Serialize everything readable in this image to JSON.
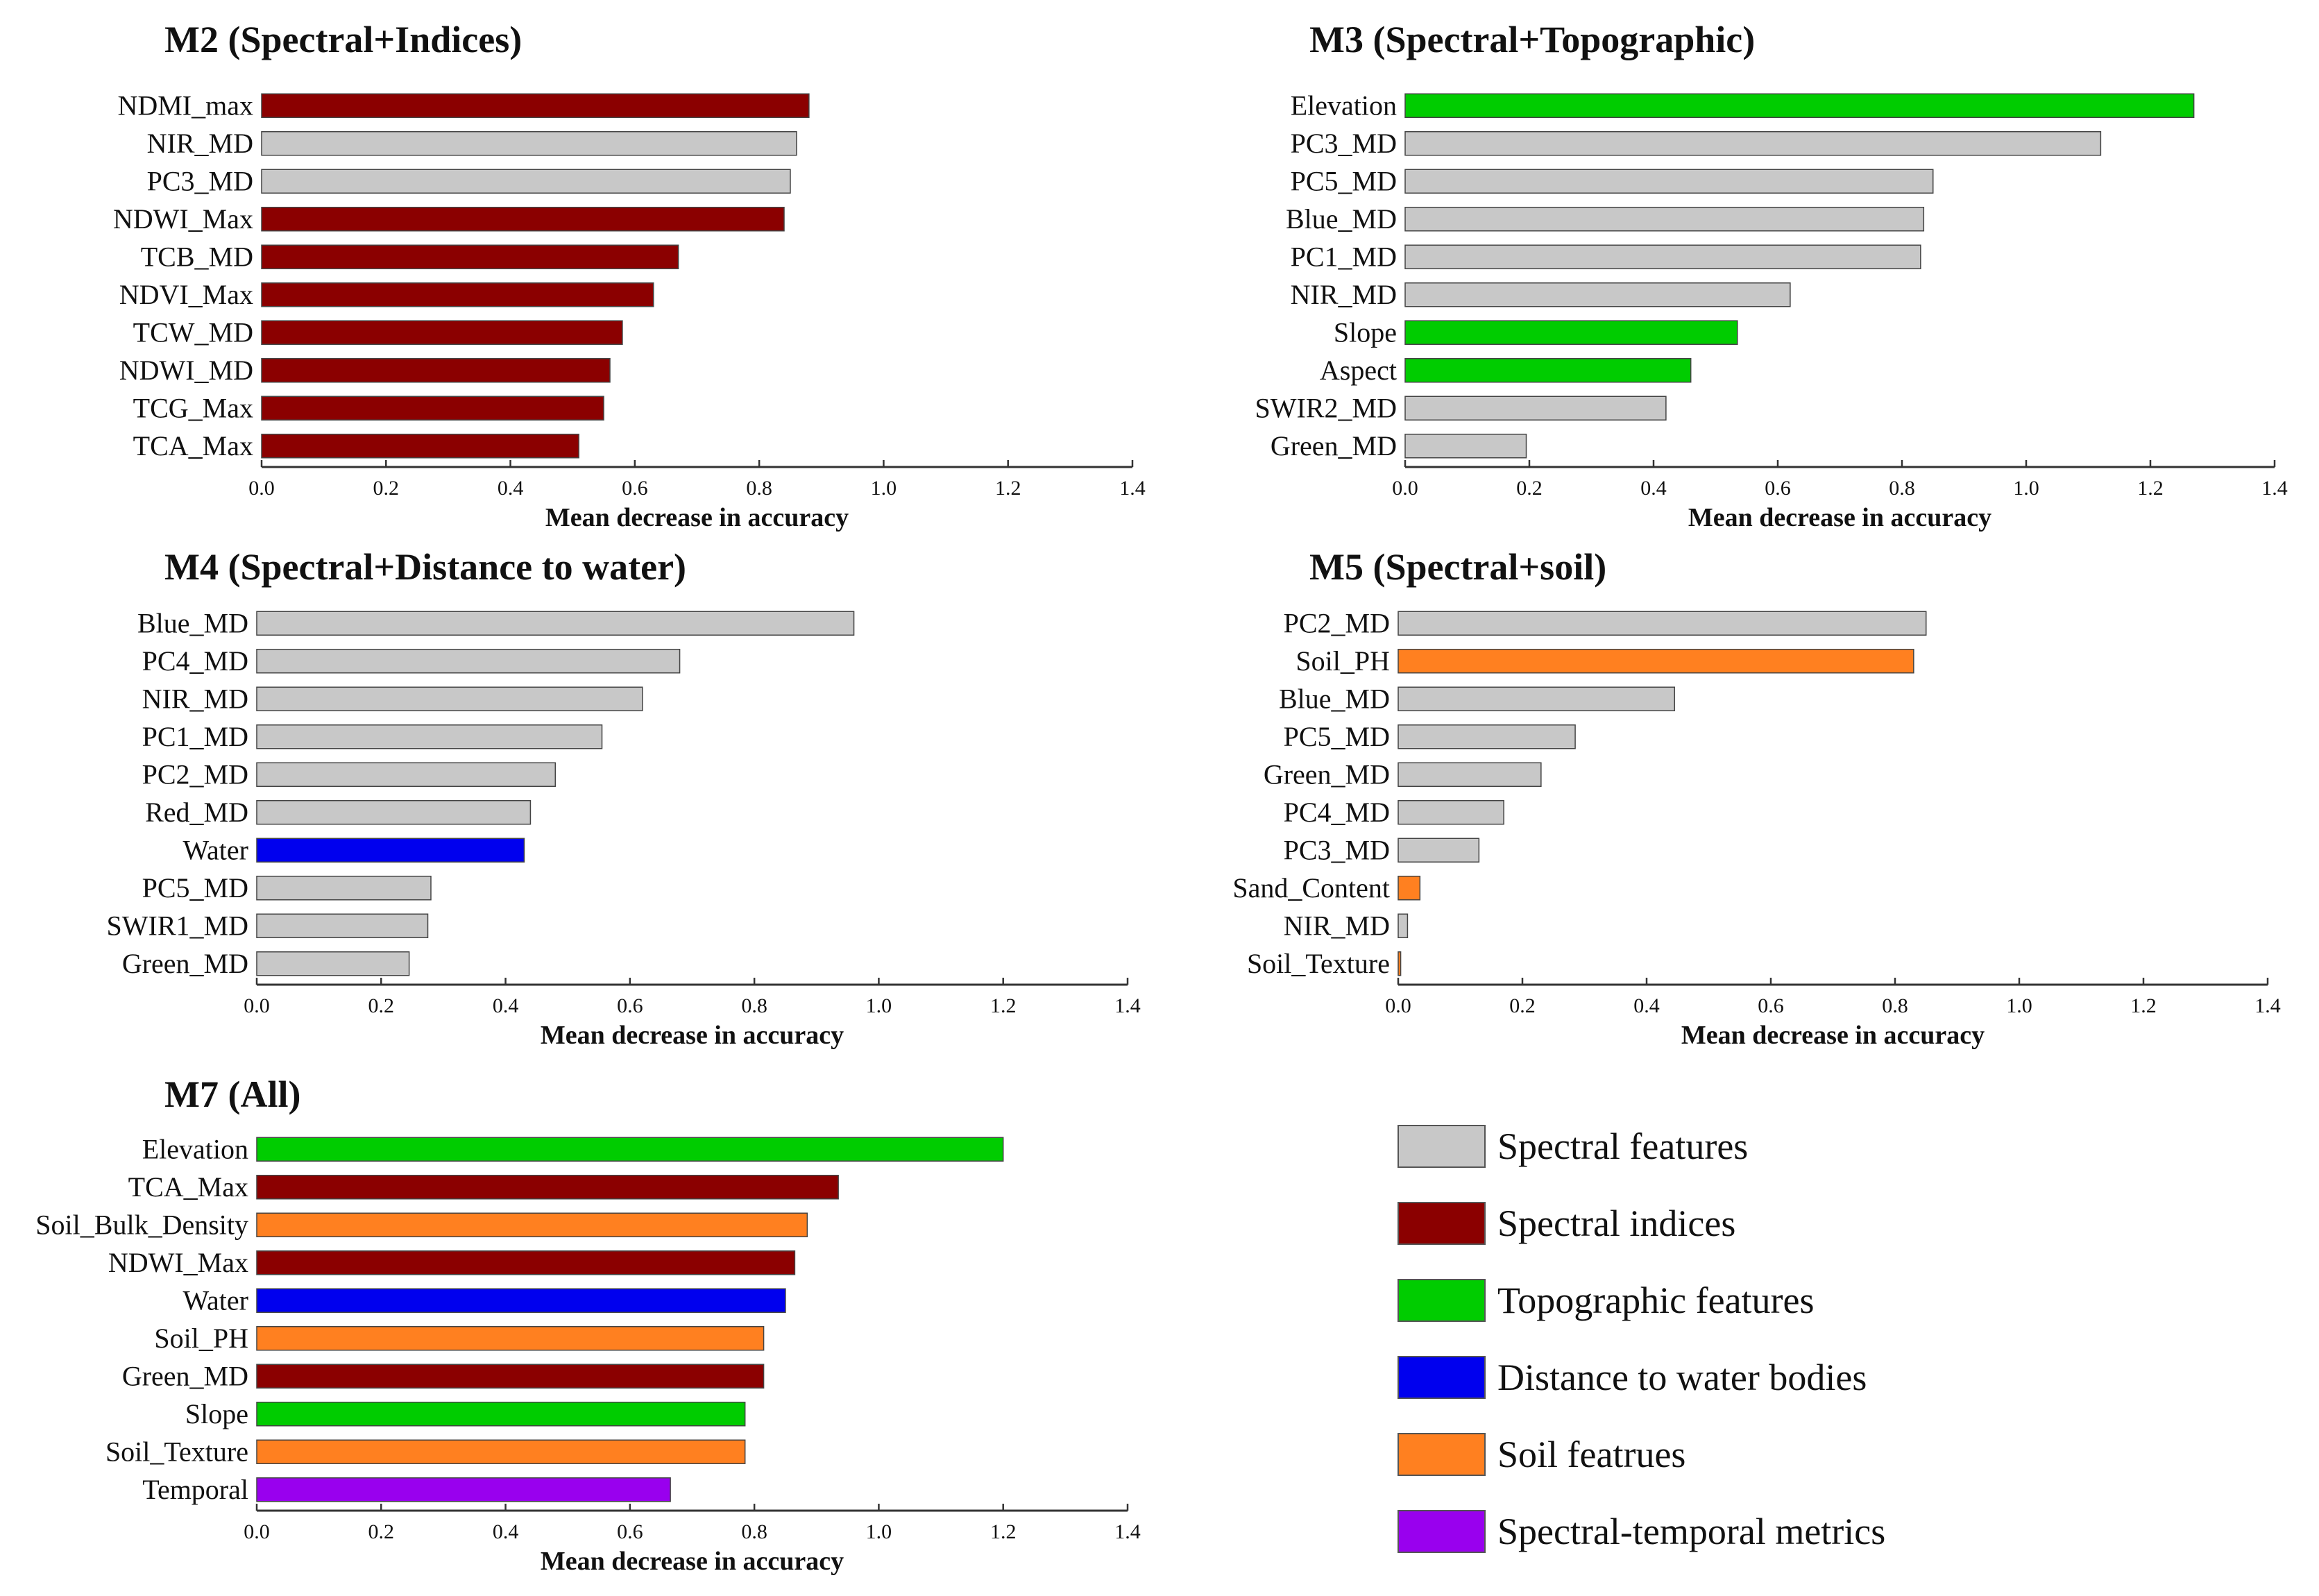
{
  "colors": {
    "spectral": "#c8c8c8",
    "indices": "#8b0000",
    "topographic": "#00cc00",
    "water": "#0000ee",
    "soil": "#ff8020",
    "temporal": "#9900ee"
  },
  "chart_data": [
    {
      "type": "bar",
      "orientation": "horizontal",
      "title": "M2 (Spectral+Indices)",
      "xlabel": "Mean decrease in accuracy",
      "xlim": [
        0,
        1.4
      ],
      "xticks": [
        "0.0",
        "0.2",
        "0.4",
        "0.6",
        "0.8",
        "1.0",
        "1.2",
        "1.4"
      ],
      "categories": [
        "NDMI_max",
        "NIR_MD",
        "PC3_MD",
        "NDWI_Max",
        "TCB_MD",
        "NDVI_Max",
        "TCW_MD",
        "NDWI_MD",
        "TCG_Max",
        "TCA_Max"
      ],
      "values": [
        0.88,
        0.86,
        0.85,
        0.84,
        0.67,
        0.63,
        0.58,
        0.56,
        0.55,
        0.51
      ],
      "groups": [
        "indices",
        "spectral",
        "spectral",
        "indices",
        "indices",
        "indices",
        "indices",
        "indices",
        "indices",
        "indices"
      ]
    },
    {
      "type": "bar",
      "orientation": "horizontal",
      "title": "M3 (Spectral+Topographic)",
      "xlabel": "Mean decrease in accuracy",
      "xlim": [
        0,
        1.4
      ],
      "xticks": [
        "0.0",
        "0.2",
        "0.4",
        "0.6",
        "0.8",
        "1.0",
        "1.2",
        "1.4"
      ],
      "categories": [
        "Elevation",
        "PC3_MD",
        "PC5_MD",
        "Blue_MD",
        "PC1_MD",
        "NIR_MD",
        "Slope",
        "Aspect",
        "SWIR2_MD",
        "Green_MD"
      ],
      "values": [
        1.27,
        1.12,
        0.85,
        0.835,
        0.83,
        0.62,
        0.535,
        0.46,
        0.42,
        0.195
      ],
      "groups": [
        "topographic",
        "spectral",
        "spectral",
        "spectral",
        "spectral",
        "spectral",
        "topographic",
        "topographic",
        "spectral",
        "spectral"
      ]
    },
    {
      "type": "bar",
      "orientation": "horizontal",
      "title": "M4 (Spectral+Distance to water)",
      "xlabel": "Mean decrease in accuracy",
      "xlim": [
        0,
        1.4
      ],
      "xticks": [
        "0.0",
        "0.2",
        "0.4",
        "0.6",
        "0.8",
        "1.0",
        "1.2",
        "1.4"
      ],
      "categories": [
        "Blue_MD",
        "PC4_MD",
        "NIR_MD",
        "PC1_MD",
        "PC2_MD",
        "Red_MD",
        "Water",
        "PC5_MD",
        "SWIR1_MD",
        "Green_MD"
      ],
      "values": [
        0.96,
        0.68,
        0.62,
        0.555,
        0.48,
        0.44,
        0.43,
        0.28,
        0.275,
        0.245
      ],
      "groups": [
        "spectral",
        "spectral",
        "spectral",
        "spectral",
        "spectral",
        "spectral",
        "water",
        "spectral",
        "spectral",
        "spectral"
      ]
    },
    {
      "type": "bar",
      "orientation": "horizontal",
      "title": "M5 (Spectral+soil)",
      "xlabel": "Mean decrease in accuracy",
      "xlim": [
        0,
        1.4
      ],
      "xticks": [
        "0.0",
        "0.2",
        "0.4",
        "0.6",
        "0.8",
        "1.0",
        "1.2",
        "1.4"
      ],
      "categories": [
        "PC2_MD",
        "Soil_PH",
        "Blue_MD",
        "PC5_MD",
        "Green_MD",
        "PC4_MD",
        "PC3_MD",
        "Sand_Content",
        "NIR_MD",
        "Soil_Texture"
      ],
      "values": [
        0.85,
        0.83,
        0.445,
        0.285,
        0.23,
        0.17,
        0.13,
        0.035,
        0.015,
        0.004
      ],
      "groups": [
        "spectral",
        "soil",
        "spectral",
        "spectral",
        "spectral",
        "spectral",
        "spectral",
        "soil",
        "spectral",
        "soil"
      ]
    },
    {
      "type": "bar",
      "orientation": "horizontal",
      "title": "M7 (All)",
      "xlabel": "Mean decrease in accuracy",
      "xlim": [
        0,
        1.4
      ],
      "xticks": [
        "0.0",
        "0.2",
        "0.4",
        "0.6",
        "0.8",
        "1.0",
        "1.2",
        "1.4"
      ],
      "categories": [
        "Elevation",
        "TCA_Max",
        "Soil_Bulk_Density",
        "NDWI_Max",
        "Water",
        "Soil_PH",
        "Green_MD",
        "Slope",
        "Soil_Texture",
        "Temporal"
      ],
      "values": [
        1.2,
        0.935,
        0.885,
        0.865,
        0.85,
        0.815,
        0.815,
        0.785,
        0.785,
        0.665
      ],
      "groups": [
        "topographic",
        "indices",
        "soil",
        "indices",
        "water",
        "soil",
        "indices",
        "topographic",
        "soil",
        "temporal"
      ]
    }
  ],
  "legend": [
    {
      "group": "spectral",
      "label": "Spectral features"
    },
    {
      "group": "indices",
      "label": "Spectral indices"
    },
    {
      "group": "topographic",
      "label": "Topographic features"
    },
    {
      "group": "water",
      "label": "Distance to water bodies"
    },
    {
      "group": "soil",
      "label": "Soil featrues"
    },
    {
      "group": "temporal",
      "label": "Spectral-temporal metrics"
    }
  ]
}
